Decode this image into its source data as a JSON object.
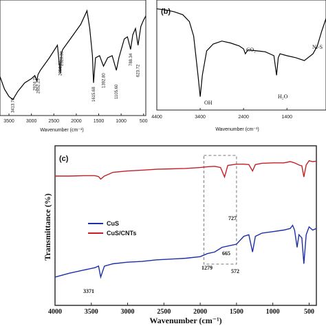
{
  "chart_data": [
    {
      "type": "line",
      "panel": "",
      "xlabel": "Wavenumber (cm⁻¹)",
      "ylabel": "",
      "xlim": [
        3700,
        450
      ],
      "ylim": [
        0,
        100
      ],
      "xticks": [
        3500,
        3000,
        2500,
        2000,
        1500,
        1000,
        500
      ],
      "series": [
        {
          "name": "",
          "color": "#000000",
          "x": [
            3700,
            3600,
            3500,
            3413.73,
            3300,
            3150,
            3000,
            2924.79,
            2880,
            2852.25,
            2800,
            2600,
            2420,
            2356.57,
            2328.38,
            2300,
            2100,
            1900,
            1760,
            1700,
            1640,
            1615.68,
            1570,
            1480,
            1392.8,
            1300,
            1200,
            1105.6,
            1050,
            930,
            860,
            788.34,
            740,
            680,
            623.72,
            560,
            500,
            450
          ],
          "y": [
            32,
            20,
            13,
            10,
            18,
            26,
            30,
            33,
            28,
            34,
            38,
            50,
            62,
            35,
            55,
            58,
            70,
            82,
            95,
            78,
            52,
            26,
            50,
            52,
            42,
            50,
            52,
            38,
            50,
            68,
            70,
            58,
            72,
            78,
            62,
            80,
            86,
            90
          ]
        }
      ],
      "annotations": [
        "3413.73",
        "2924.79",
        "2852.25",
        "2356.57",
        "2328.38",
        "1615.68",
        "1392.80",
        "1105.60",
        "788.34",
        "623.72"
      ]
    },
    {
      "type": "line",
      "panel": "(b)",
      "xlabel": "Wavenumber (cm⁻¹)",
      "ylabel": "",
      "xlim": [
        4400,
        500
      ],
      "ylim": [
        0,
        100
      ],
      "xticks": [
        4400,
        3400,
        2400,
        1400
      ],
      "series": [
        {
          "name": "",
          "color": "#000000",
          "x": [
            4400,
            4200,
            4000,
            3800,
            3650,
            3550,
            3450,
            3400,
            3350,
            3250,
            3100,
            2900,
            2700,
            2500,
            2400,
            2360,
            2300,
            2100,
            1900,
            1700,
            1640,
            1600,
            1560,
            1400,
            1200,
            1000,
            800,
            700,
            600,
            500
          ],
          "y": [
            98,
            97,
            95,
            92,
            85,
            70,
            30,
            8,
            30,
            55,
            62,
            65,
            63,
            60,
            57,
            52,
            56,
            55,
            54,
            50,
            30,
            48,
            52,
            50,
            48,
            45,
            52,
            60,
            75,
            88
          ]
        }
      ],
      "annotations": [
        "OH",
        "CO₂",
        "H₂O",
        "Ni-S"
      ]
    },
    {
      "type": "line",
      "panel": "(c)",
      "xlabel": "Wavenumber (cm⁻¹)",
      "ylabel": "Transmittance (%)",
      "xlim": [
        4000,
        400
      ],
      "ylim": [
        0,
        100
      ],
      "xticks": [
        4000,
        3500,
        3000,
        2500,
        2000,
        1500,
        1000,
        500
      ],
      "legend_position": "center-left",
      "series": [
        {
          "name": "CuS",
          "color": "#1a2ea8",
          "x": [
            4000,
            3800,
            3600,
            3450,
            3400,
            3371,
            3320,
            3200,
            3000,
            2800,
            2600,
            2400,
            2200,
            2000,
            1900,
            1800,
            1700,
            1600,
            1500,
            1400,
            1330,
            1279,
            1240,
            1150,
            1000,
            850,
            760,
            727,
            700,
            665,
            640,
            600,
            572,
            540,
            500,
            450,
            400
          ],
          "y": [
            8,
            13,
            17,
            20,
            22,
            8,
            22,
            25,
            27,
            28,
            30,
            31,
            32,
            34,
            38,
            40,
            46,
            48,
            50,
            60,
            62,
            40,
            60,
            64,
            66,
            68,
            70,
            74,
            68,
            46,
            62,
            58,
            25,
            62,
            72,
            68,
            70
          ]
        },
        {
          "name": "CuS/CNTs",
          "color": "#c41e24",
          "x": [
            4000,
            3800,
            3600,
            3450,
            3400,
            3371,
            3320,
            3200,
            3000,
            2800,
            2600,
            2400,
            2200,
            2000,
            1900,
            1800,
            1720,
            1665,
            1620,
            1500,
            1400,
            1330,
            1279,
            1240,
            1150,
            1000,
            850,
            760,
            700,
            640,
            600,
            572,
            540,
            500,
            450,
            400
          ],
          "y": [
            58,
            58,
            59,
            59,
            57,
            51,
            58,
            67,
            70,
            72,
            74,
            75,
            76,
            78,
            80,
            81,
            78,
            56,
            83,
            86,
            86,
            85,
            70,
            85,
            88,
            89,
            89,
            92,
            89,
            84,
            82,
            56,
            84,
            94,
            92,
            93
          ]
        }
      ],
      "annotations": [
        "3371",
        "1279",
        "665",
        "727",
        "572"
      ],
      "highlight_box_x": [
        1950,
        1500
      ]
    }
  ]
}
